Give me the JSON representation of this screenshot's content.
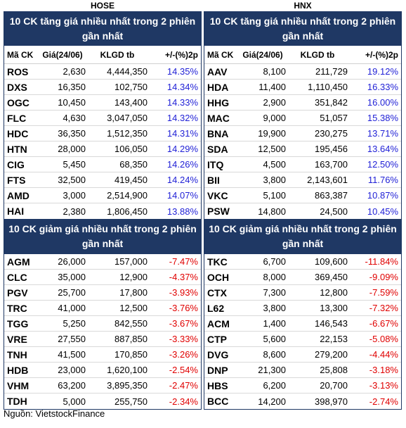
{
  "exchanges": {
    "left": "HOSE",
    "right": "HNX"
  },
  "headers": {
    "code": "Mã CK",
    "price": "Giá(24/06)",
    "volume": "KLGD tb",
    "pct": "+/-(%)2p"
  },
  "hose": {
    "up_title": "10 CK tăng giá nhiều nhất trong 2 phiên gần nhất",
    "down_title": "10 CK giảm giá nhiều nhất trong 2 phiên gần nhất",
    "up_rows": [
      {
        "code": "ROS",
        "price": "2,630",
        "volume": "4,444,350",
        "pct": "14.35%"
      },
      {
        "code": "DXS",
        "price": "16,350",
        "volume": "102,750",
        "pct": "14.34%"
      },
      {
        "code": "OGC",
        "price": "10,450",
        "volume": "143,400",
        "pct": "14.33%"
      },
      {
        "code": "FLC",
        "price": "4,630",
        "volume": "3,047,050",
        "pct": "14.32%"
      },
      {
        "code": "HDC",
        "price": "36,350",
        "volume": "1,512,350",
        "pct": "14.31%"
      },
      {
        "code": "HTN",
        "price": "28,000",
        "volume": "106,050",
        "pct": "14.29%"
      },
      {
        "code": "CIG",
        "price": "5,450",
        "volume": "68,350",
        "pct": "14.26%"
      },
      {
        "code": "FTS",
        "price": "32,500",
        "volume": "419,450",
        "pct": "14.24%"
      },
      {
        "code": "AMD",
        "price": "3,000",
        "volume": "2,514,900",
        "pct": "14.07%"
      },
      {
        "code": "HAI",
        "price": "2,380",
        "volume": "1,806,450",
        "pct": "13.88%"
      }
    ],
    "down_rows": [
      {
        "code": "AGM",
        "price": "26,000",
        "volume": "157,000",
        "pct": "-7.47%"
      },
      {
        "code": "CLC",
        "price": "35,000",
        "volume": "12,900",
        "pct": "-4.37%"
      },
      {
        "code": "PGV",
        "price": "25,700",
        "volume": "17,800",
        "pct": "-3.93%"
      },
      {
        "code": "TRC",
        "price": "41,000",
        "volume": "12,500",
        "pct": "-3.76%"
      },
      {
        "code": "TGG",
        "price": "5,250",
        "volume": "842,550",
        "pct": "-3.67%"
      },
      {
        "code": "VRE",
        "price": "27,550",
        "volume": "887,850",
        "pct": "-3.33%"
      },
      {
        "code": "TNH",
        "price": "41,500",
        "volume": "170,850",
        "pct": "-3.26%"
      },
      {
        "code": "HDB",
        "price": "23,000",
        "volume": "1,620,100",
        "pct": "-2.54%"
      },
      {
        "code": "VHM",
        "price": "63,200",
        "volume": "3,895,350",
        "pct": "-2.47%"
      },
      {
        "code": "TDH",
        "price": "5,000",
        "volume": "255,750",
        "pct": "-2.34%"
      }
    ]
  },
  "hnx": {
    "up_title": "10 CK tăng giá nhiều nhất trong 2 phiên gần nhất",
    "down_title": "10 CK giảm giá nhiều nhất trong 2 phiên gần nhất",
    "up_rows": [
      {
        "code": "AAV",
        "price": "8,100",
        "volume": "211,729",
        "pct": "19.12%"
      },
      {
        "code": "HDA",
        "price": "11,400",
        "volume": "1,110,450",
        "pct": "16.33%"
      },
      {
        "code": "HHG",
        "price": "2,900",
        "volume": "351,842",
        "pct": "16.00%"
      },
      {
        "code": "MAC",
        "price": "9,000",
        "volume": "51,057",
        "pct": "15.38%"
      },
      {
        "code": "BNA",
        "price": "19,900",
        "volume": "230,275",
        "pct": "13.71%"
      },
      {
        "code": "SDA",
        "price": "12,500",
        "volume": "195,456",
        "pct": "13.64%"
      },
      {
        "code": "ITQ",
        "price": "4,500",
        "volume": "163,700",
        "pct": "12.50%"
      },
      {
        "code": "BII",
        "price": "3,800",
        "volume": "2,143,601",
        "pct": "11.76%"
      },
      {
        "code": "VKC",
        "price": "5,100",
        "volume": "863,387",
        "pct": "10.87%"
      },
      {
        "code": "PSW",
        "price": "14,800",
        "volume": "24,500",
        "pct": "10.45%"
      }
    ],
    "down_rows": [
      {
        "code": "TKC",
        "price": "6,700",
        "volume": "109,600",
        "pct": "-11.84%"
      },
      {
        "code": "OCH",
        "price": "8,000",
        "volume": "369,450",
        "pct": "-9.09%"
      },
      {
        "code": "CTX",
        "price": "7,300",
        "volume": "12,800",
        "pct": "-7.59%"
      },
      {
        "code": "L62",
        "price": "3,800",
        "volume": "13,300",
        "pct": "-7.32%"
      },
      {
        "code": "ACM",
        "price": "1,400",
        "volume": "146,543",
        "pct": "-6.67%"
      },
      {
        "code": "CTP",
        "price": "5,600",
        "volume": "22,153",
        "pct": "-5.08%"
      },
      {
        "code": "DVG",
        "price": "8,600",
        "volume": "279,200",
        "pct": "-4.44%"
      },
      {
        "code": "DNP",
        "price": "21,300",
        "volume": "25,808",
        "pct": "-3.18%"
      },
      {
        "code": "HBS",
        "price": "6,200",
        "volume": "20,700",
        "pct": "-3.13%"
      },
      {
        "code": "BCC",
        "price": "14,200",
        "volume": "398,970",
        "pct": "-2.74%"
      }
    ]
  },
  "source": "Nguồn: VietstockFinance",
  "colors": {
    "header_bg": "#1f3864",
    "up_pct": "#1f1fd6",
    "down_pct": "#e00000"
  }
}
